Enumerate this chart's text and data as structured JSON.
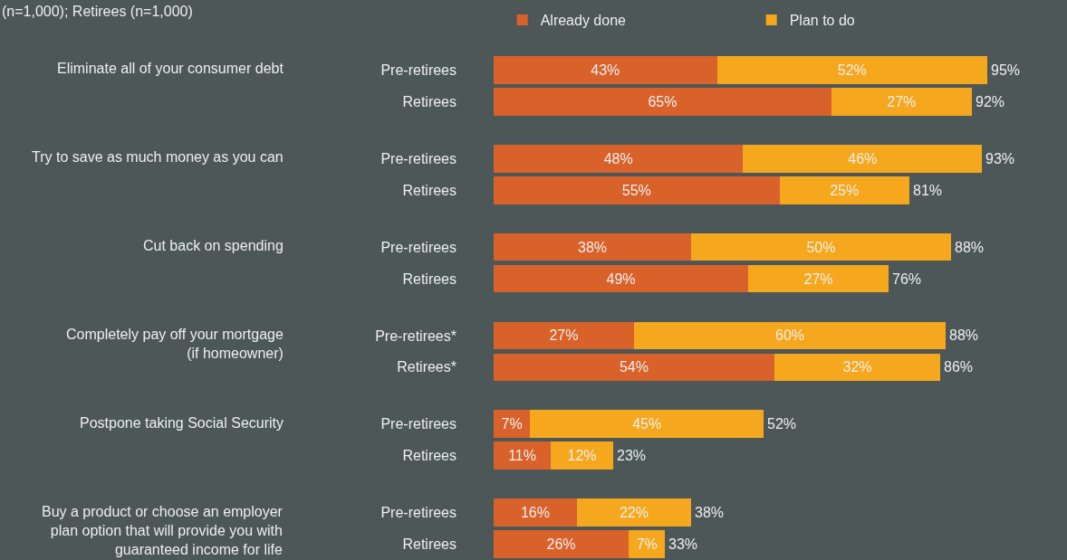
{
  "chart_data": {
    "type": "bar",
    "orientation": "horizontal",
    "stacked": true,
    "subtitle": "(n=1,000); Retirees (n=1,000)",
    "categories": [
      "Pre-retirees",
      "Retirees",
      "Pre-retirees",
      "Retirees",
      "Pre-retirees",
      "Retirees",
      "Pre-retirees*",
      "Retirees*",
      "Pre-retirees",
      "Retirees",
      "Pre-retirees",
      "Retirees"
    ],
    "series": [
      {
        "name": "Already done",
        "color": "#d9622b",
        "values": [
          43,
          65,
          48,
          55,
          38,
          49,
          27,
          54,
          7,
          11,
          16,
          26
        ],
        "value_labels": [
          "43%",
          "65%",
          "48%",
          "55%",
          "38%",
          "49%",
          "27%",
          "54%",
          "7%",
          "11%",
          "16%",
          "26%"
        ]
      },
      {
        "name": "Plan to do",
        "color": "#f5a81e",
        "values": [
          52,
          27,
          46,
          25,
          50,
          27,
          60,
          32,
          45,
          12,
          22,
          7
        ],
        "value_labels": [
          "52%",
          "27%",
          "46%",
          "25%",
          "50%",
          "27%",
          "60%",
          "32%",
          "45%",
          "12%",
          "22%",
          "7%"
        ]
      }
    ],
    "totals": [
      "95%",
      "92%",
      "93%",
      "81%",
      "88%",
      "76%",
      "88%",
      "86%",
      "52%",
      "23%",
      "38%",
      "33%"
    ],
    "annotations": [
      "Eliminate all of your consumer debt",
      "Try to save as much money as you can",
      "Cut back on spending",
      "Completely pay off your mortgage\n(if homeowner)",
      "Postpone taking Social Security",
      "Buy a product or choose an employer\nplan option that will provide you with\nguaranteed income for life"
    ],
    "legend": "top"
  }
}
